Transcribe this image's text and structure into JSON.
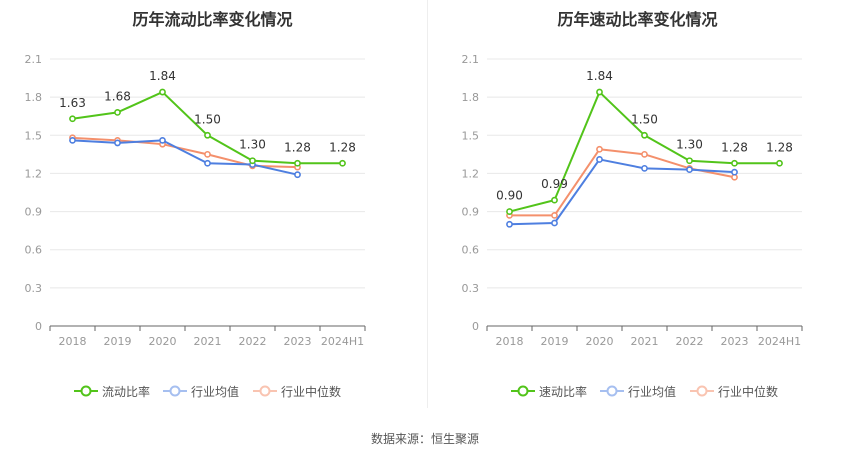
{
  "colors": {
    "current_ratio": "#52c41a",
    "industry_avg": "#4e7fe0",
    "industry_median": "#f4906c",
    "grid": "#e8e8e8",
    "axis": "#999999"
  },
  "legend": {
    "left": [
      "流动比率",
      "行业均值",
      "行业中位数"
    ],
    "right": [
      "速动比率",
      "行业均值",
      "行业中位数"
    ]
  },
  "source": "数据来源：恒生聚源",
  "chart_data": [
    {
      "type": "line",
      "title": "历年流动比率变化情况",
      "categories": [
        "2018",
        "2019",
        "2020",
        "2021",
        "2022",
        "2023",
        "2024H1"
      ],
      "ylim": [
        0,
        2.1
      ],
      "yticks": [
        0,
        0.3,
        0.6,
        0.9,
        1.2,
        1.5,
        1.8,
        2.1
      ],
      "ytick_labels": [
        "0",
        "0.3",
        "0.6",
        "0.9",
        "1.2",
        "1.5",
        "1.8",
        "2.1"
      ],
      "grid": true,
      "legend_position": "bottom",
      "series": [
        {
          "name": "流动比率",
          "values": [
            1.63,
            1.68,
            1.84,
            1.5,
            1.3,
            1.28,
            1.28
          ],
          "labels": [
            "1.63",
            "1.68",
            "1.84",
            "1.50",
            "1.30",
            "1.28",
            "1.28"
          ]
        },
        {
          "name": "行业均值",
          "values": [
            1.46,
            1.44,
            1.46,
            1.28,
            1.27,
            1.19,
            null
          ]
        },
        {
          "name": "行业中位数",
          "values": [
            1.48,
            1.46,
            1.43,
            1.35,
            1.26,
            1.25,
            null
          ]
        }
      ]
    },
    {
      "type": "line",
      "title": "历年速动比率变化情况",
      "categories": [
        "2018",
        "2019",
        "2020",
        "2021",
        "2022",
        "2023",
        "2024H1"
      ],
      "ylim": [
        0,
        2.1
      ],
      "yticks": [
        0,
        0.3,
        0.6,
        0.9,
        1.2,
        1.5,
        1.8,
        2.1
      ],
      "ytick_labels": [
        "0",
        "0.3",
        "0.6",
        "0.9",
        "1.2",
        "1.5",
        "1.8",
        "2.1"
      ],
      "grid": true,
      "legend_position": "bottom",
      "series": [
        {
          "name": "速动比率",
          "values": [
            0.9,
            0.99,
            1.84,
            1.5,
            1.3,
            1.28,
            1.28
          ],
          "labels": [
            "0.90",
            "0.99",
            "1.84",
            "1.50",
            "1.30",
            "1.28",
            "1.28"
          ]
        },
        {
          "name": "行业均值",
          "values": [
            0.8,
            0.81,
            1.31,
            1.24,
            1.23,
            1.21,
            null
          ]
        },
        {
          "name": "行业中位数",
          "values": [
            0.87,
            0.87,
            1.39,
            1.35,
            1.24,
            1.17,
            null
          ]
        }
      ]
    }
  ]
}
